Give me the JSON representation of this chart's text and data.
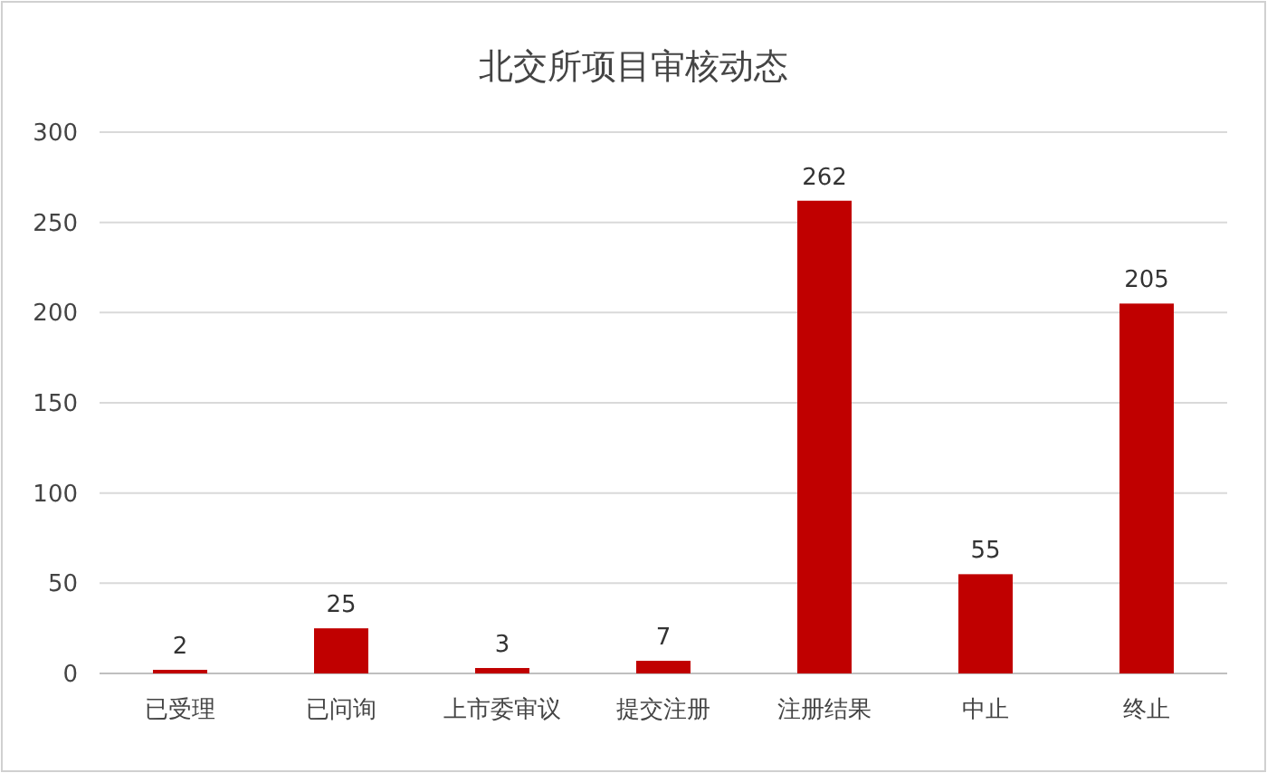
{
  "chart_data": {
    "type": "bar",
    "title": "北交所项目审核动态",
    "categories": [
      "已受理",
      "已问询",
      "上市委审议",
      "提交注册",
      "注册结果",
      "中止",
      "终止"
    ],
    "values": [
      2,
      25,
      3,
      7,
      262,
      55,
      205
    ],
    "color": "#c00000",
    "ylim": [
      0,
      300
    ],
    "yticks": [
      0,
      50,
      100,
      150,
      200,
      250,
      300
    ],
    "grid": "y",
    "data_labels": true
  }
}
